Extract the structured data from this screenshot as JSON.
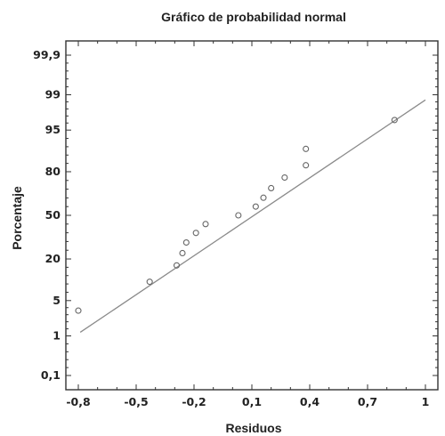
{
  "chart_data": {
    "type": "scatter",
    "title": "Gráfico de probabilidad normal",
    "xlabel": "Residuos",
    "ylabel": "Porcentaje",
    "xlim": [
      -0.8,
      1.0
    ],
    "x_ticks": [
      -0.8,
      -0.5,
      -0.2,
      0.1,
      0.4,
      0.7,
      1.0
    ],
    "x_tick_labels": [
      "-0,8",
      "-0,5",
      "-0,2",
      "0,1",
      "0,4",
      "0,7",
      "1"
    ],
    "y_scale": "normal-probability",
    "y_ticks": [
      0.1,
      1,
      5,
      20,
      50,
      80,
      95,
      99,
      99.9
    ],
    "y_tick_labels": [
      "0,1",
      "1",
      "5",
      "20",
      "50",
      "80",
      "95",
      "99",
      "99,9"
    ],
    "grid": false,
    "series": [
      {
        "points": [
          {
            "x": -0.8,
            "y": 3.3
          },
          {
            "x": -0.43,
            "y": 10.0
          },
          {
            "x": -0.29,
            "y": 16.7
          },
          {
            "x": -0.26,
            "y": 23.3
          },
          {
            "x": -0.24,
            "y": 30.0
          },
          {
            "x": -0.19,
            "y": 36.7
          },
          {
            "x": -0.14,
            "y": 43.3
          },
          {
            "x": 0.03,
            "y": 50.0
          },
          {
            "x": 0.12,
            "y": 56.7
          },
          {
            "x": 0.16,
            "y": 63.3
          },
          {
            "x": 0.2,
            "y": 70.0
          },
          {
            "x": 0.27,
            "y": 76.7
          },
          {
            "x": 0.38,
            "y": 83.3
          },
          {
            "x": 0.38,
            "y": 90.0
          },
          {
            "x": 0.84,
            "y": 96.7
          }
        ]
      }
    ],
    "fit_line": {
      "x": [
        -0.79,
        1.0
      ],
      "y": [
        1.2,
        98.7
      ]
    }
  }
}
